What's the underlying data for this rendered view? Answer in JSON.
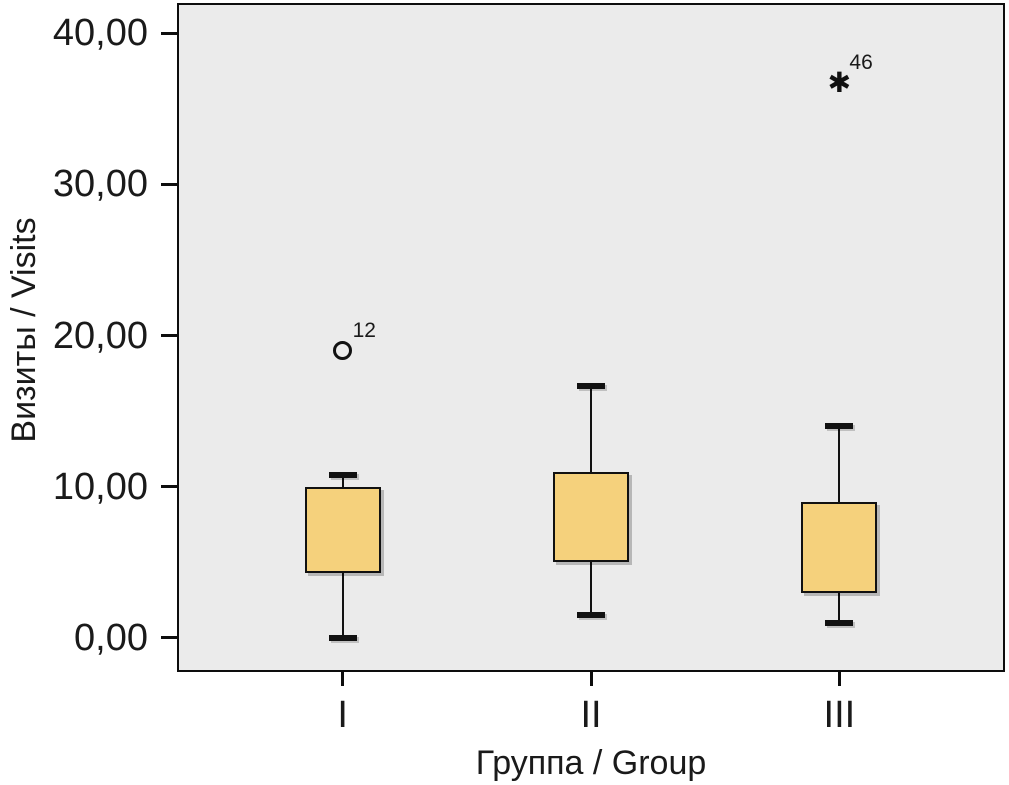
{
  "figure": {
    "background": "#ffffff",
    "plot_background": "#ebebeb",
    "plot_border_color": "#0d0d0d",
    "box_fill": "#f5d17c",
    "box_border": "#111111",
    "text_color": "#1a1a1a"
  },
  "chart_data": {
    "type": "box",
    "title": "",
    "xlabel": "Группа / Group",
    "ylabel": "Визиты / Visits",
    "categories": [
      "I",
      "II",
      "III"
    ],
    "y_ticks": [
      {
        "value": 0,
        "label": "0,00"
      },
      {
        "value": 10,
        "label": "10,00"
      },
      {
        "value": 20,
        "label": "20,00"
      },
      {
        "value": 30,
        "label": "30,00"
      },
      {
        "value": 40,
        "label": "40,00"
      }
    ],
    "ylim": [
      0,
      40
    ],
    "render_range": [
      -2.25,
      42
    ],
    "grid": false,
    "legend": "none",
    "boxes": [
      {
        "category": "I",
        "whisker_low": 0.0,
        "q1": 4.3,
        "q3": 10.0,
        "whisker_high": 10.8,
        "outliers": [
          {
            "value": 19.0,
            "label": "12",
            "marker": "circle"
          }
        ]
      },
      {
        "category": "II",
        "whisker_low": 1.5,
        "q1": 5.0,
        "q3": 11.0,
        "whisker_high": 16.7,
        "outliers": []
      },
      {
        "category": "III",
        "whisker_low": 1.0,
        "q1": 3.0,
        "q3": 9.0,
        "whisker_high": 14.0,
        "outliers": [
          {
            "value": 36.7,
            "label": "46",
            "marker": "asterisk"
          }
        ]
      }
    ]
  }
}
